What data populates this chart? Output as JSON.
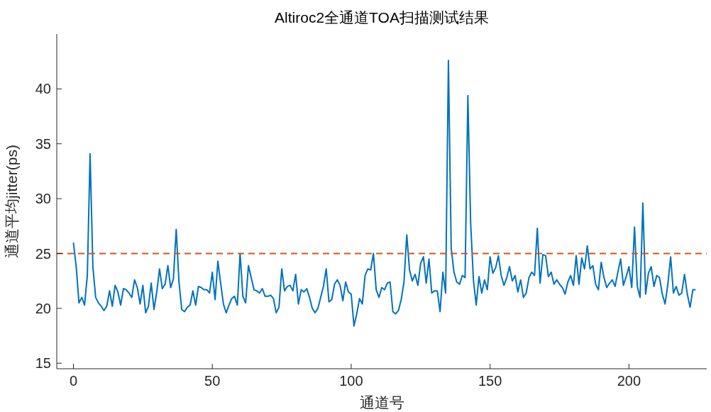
{
  "chart_data": {
    "type": "line",
    "title": "Altiroc2全通道TOA扫描测试结果",
    "xlabel": "通道号",
    "ylabel": "通道平均jitter(ps)",
    "x": [
      0,
      1,
      2,
      3,
      4,
      5,
      6,
      7,
      8,
      9,
      10,
      11,
      12,
      13,
      14,
      15,
      16,
      17,
      18,
      19,
      20,
      21,
      22,
      23,
      24,
      25,
      26,
      27,
      28,
      29,
      30,
      31,
      32,
      33,
      34,
      35,
      36,
      37,
      38,
      39,
      40,
      41,
      42,
      43,
      44,
      45,
      46,
      47,
      48,
      49,
      50,
      51,
      52,
      53,
      54,
      55,
      56,
      57,
      58,
      59,
      60,
      61,
      62,
      63,
      64,
      65,
      66,
      67,
      68,
      69,
      70,
      71,
      72,
      73,
      74,
      75,
      76,
      77,
      78,
      79,
      80,
      81,
      82,
      83,
      84,
      85,
      86,
      87,
      88,
      89,
      90,
      91,
      92,
      93,
      94,
      95,
      96,
      97,
      98,
      99,
      100,
      101,
      102,
      103,
      104,
      105,
      106,
      107,
      108,
      109,
      110,
      111,
      112,
      113,
      114,
      115,
      116,
      117,
      118,
      119,
      120,
      121,
      122,
      123,
      124,
      125,
      126,
      127,
      128,
      129,
      130,
      131,
      132,
      133,
      134,
      135,
      136,
      137,
      138,
      139,
      140,
      141,
      142,
      143,
      144,
      145,
      146,
      147,
      148,
      149,
      150,
      151,
      152,
      153,
      154,
      155,
      156,
      157,
      158,
      159,
      160,
      161,
      162,
      163,
      164,
      165,
      166,
      167,
      168,
      169,
      170,
      171,
      172,
      173,
      174,
      175,
      176,
      177,
      178,
      179,
      180,
      181,
      182,
      183,
      184,
      185,
      186,
      187,
      188,
      189,
      190,
      191,
      192,
      193,
      194,
      195,
      196,
      197,
      198,
      199,
      200,
      201,
      202,
      203,
      204,
      205,
      206,
      207,
      208,
      209,
      210,
      211,
      212,
      213,
      214,
      215,
      216,
      217,
      218,
      219,
      220,
      221,
      222,
      223,
      224
    ],
    "series": [
      {
        "color": "#0072bd",
        "values": [
          26.0,
          23.8,
          20.5,
          21.0,
          20.3,
          23.0,
          34.1,
          23.8,
          21.0,
          20.5,
          20.2,
          19.8,
          20.2,
          21.6,
          20.2,
          22.1,
          21.5,
          20.3,
          21.8,
          21.7,
          21.4,
          21.0,
          22.6,
          21.9,
          20.4,
          22.1,
          19.6,
          20.2,
          22.3,
          19.9,
          21.5,
          23.6,
          21.8,
          22.2,
          23.9,
          21.9,
          22.7,
          27.2,
          22.4,
          19.9,
          19.7,
          20.1,
          20.3,
          21.6,
          20.3,
          22.0,
          21.9,
          21.7,
          21.7,
          21.4,
          23.3,
          20.8,
          24.3,
          22.3,
          20.4,
          19.6,
          20.3,
          20.9,
          21.1,
          20.3,
          25.0,
          21.1,
          20.5,
          23.9,
          22.8,
          21.7,
          21.6,
          21.4,
          21.8,
          21.1,
          21.1,
          21.2,
          20.9,
          19.6,
          20.1,
          23.6,
          21.6,
          22.0,
          22.1,
          21.6,
          23.1,
          20.4,
          21.7,
          21.5,
          21.8,
          21.0,
          20.0,
          19.6,
          20.0,
          21.0,
          22.0,
          23.6,
          20.6,
          20.8,
          22.2,
          22.6,
          22.1,
          20.7,
          22.4,
          21.5,
          21.3,
          18.4,
          19.5,
          20.9,
          20.4,
          23.0,
          23.6,
          23.5,
          25.0,
          21.7,
          21.0,
          21.9,
          21.7,
          22.3,
          22.4,
          19.7,
          19.5,
          19.8,
          20.8,
          22.4,
          26.7,
          23.5,
          22.5,
          23.1,
          22.1,
          24.1,
          24.7,
          22.3,
          24.5,
          21.4,
          21.6,
          21.6,
          19.7,
          23.3,
          21.4,
          42.6,
          25.5,
          23.3,
          22.4,
          22.2,
          23.0,
          22.8,
          39.4,
          27.8,
          22.6,
          20.3,
          22.9,
          21.4,
          22.6,
          21.7,
          24.7,
          23.2,
          23.7,
          24.8,
          23.0,
          22.1,
          22.8,
          23.8,
          22.5,
          23.0,
          21.5,
          22.6,
          21.0,
          21.4,
          22.8,
          23.3,
          23.0,
          27.3,
          22.3,
          24.9,
          24.8,
          22.9,
          23.3,
          22.2,
          22.6,
          22.2,
          21.9,
          21.3,
          22.4,
          23.0,
          22.1,
          24.8,
          22.2,
          24.6,
          23.6,
          25.7,
          23.6,
          23.9,
          22.2,
          21.7,
          24.2,
          22.8,
          21.9,
          22.3,
          22.6,
          22.0,
          23.3,
          24.5,
          22.1,
          22.9,
          23.8,
          21.9,
          27.4,
          22.0,
          21.0,
          29.6,
          21.3,
          23.2,
          23.8,
          22.0,
          23.0,
          22.8,
          21.3,
          20.4,
          22.2,
          24.7,
          21.4,
          22.0,
          21.2,
          21.4,
          23.1,
          21.3,
          20.1,
          21.7,
          21.7
        ]
      }
    ],
    "xlim": [
      -6,
      228
    ],
    "xticks": [
      0,
      50,
      100,
      150,
      200
    ],
    "ylim": [
      14.5,
      45
    ],
    "yticks": [
      15,
      20,
      25,
      30,
      35,
      40
    ],
    "ref_lines": [
      {
        "axis": "y",
        "value": 25,
        "color": "#d95319",
        "line_style": "dashed"
      }
    ],
    "grid": false,
    "marker": "none",
    "line_style": "solid"
  }
}
